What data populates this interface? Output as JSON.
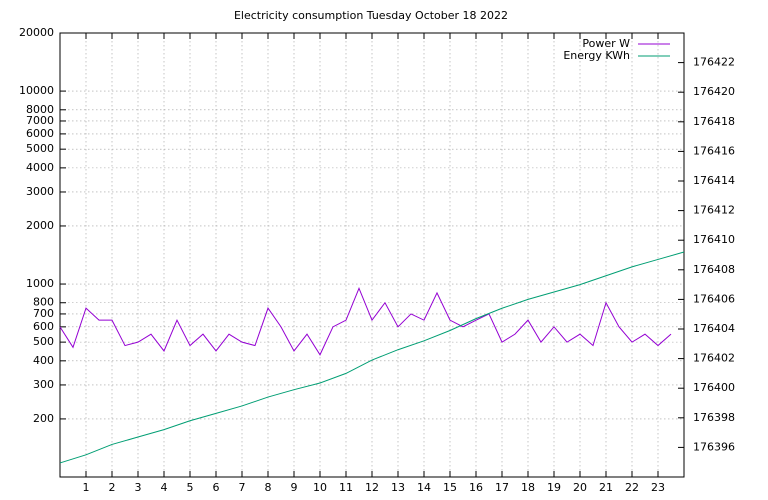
{
  "chart_data": {
    "type": "line",
    "title": "Electricity consumption Tuesday October 18 2022",
    "xlim": [
      0,
      24
    ],
    "xticks": [
      1,
      2,
      3,
      4,
      5,
      6,
      7,
      8,
      9,
      10,
      11,
      12,
      13,
      14,
      15,
      16,
      17,
      18,
      19,
      20,
      21,
      22,
      23
    ],
    "ylim": [
      100,
      20000
    ],
    "yscale": "log",
    "yticks": [
      200,
      300,
      400,
      500,
      600,
      700,
      800,
      {
        "value": 1000,
        "label": "1000"
      },
      2000,
      3000,
      4000,
      5000,
      6000,
      7000,
      8000,
      10000,
      20000
    ],
    "y2lim": [
      176394,
      176424
    ],
    "y2ticks": [
      176396,
      176398,
      176400,
      176402,
      176404,
      176406,
      176408,
      176410,
      176412,
      176414,
      176416,
      176418,
      176420,
      176422
    ],
    "grid": true,
    "legend": "top-right",
    "series": [
      {
        "name": "Power W",
        "color": "#9400d3",
        "x": [
          0,
          0.5,
          1,
          1.5,
          2,
          2.5,
          3,
          3.5,
          4,
          4.5,
          5,
          5.5,
          6,
          6.5,
          7,
          7.5,
          8,
          8.5,
          9,
          9.5,
          10,
          10.5,
          11,
          11.5,
          12,
          12.5,
          13,
          13.5,
          14,
          14.5,
          15,
          15.5,
          16,
          16.5,
          17,
          17.5,
          18,
          18.5,
          19,
          19.5,
          20,
          20.5,
          21,
          21.5,
          22,
          22.5,
          23,
          23.5
        ],
        "values": [
          600,
          470,
          750,
          650,
          650,
          480,
          500,
          550,
          450,
          650,
          480,
          550,
          450,
          550,
          500,
          480,
          750,
          600,
          450,
          550,
          430,
          600,
          650,
          950,
          650,
          800,
          600,
          700,
          650,
          900,
          650,
          600,
          650,
          700,
          500,
          550,
          650,
          500,
          600,
          500,
          550,
          480,
          800,
          600,
          500,
          550,
          480,
          550
        ]
      },
      {
        "name": "Energy KWh",
        "color": "#009e73",
        "axis": "y2",
        "x": [
          0,
          1,
          2,
          3,
          4,
          5,
          6,
          7,
          8,
          9,
          10,
          11,
          12,
          13,
          14,
          15,
          16,
          17,
          18,
          19,
          20,
          21,
          22,
          23,
          24
        ],
        "values": [
          176394.95,
          176395.5,
          176396.2,
          176396.7,
          176397.2,
          176397.8,
          176398.3,
          176398.8,
          176399.4,
          176399.9,
          176400.35,
          176401.0,
          176401.9,
          176402.6,
          176403.2,
          176403.9,
          176404.7,
          176405.4,
          176406.0,
          176406.5,
          176407.0,
          176407.6,
          176408.2,
          176408.7,
          176409.2
        ]
      }
    ]
  }
}
